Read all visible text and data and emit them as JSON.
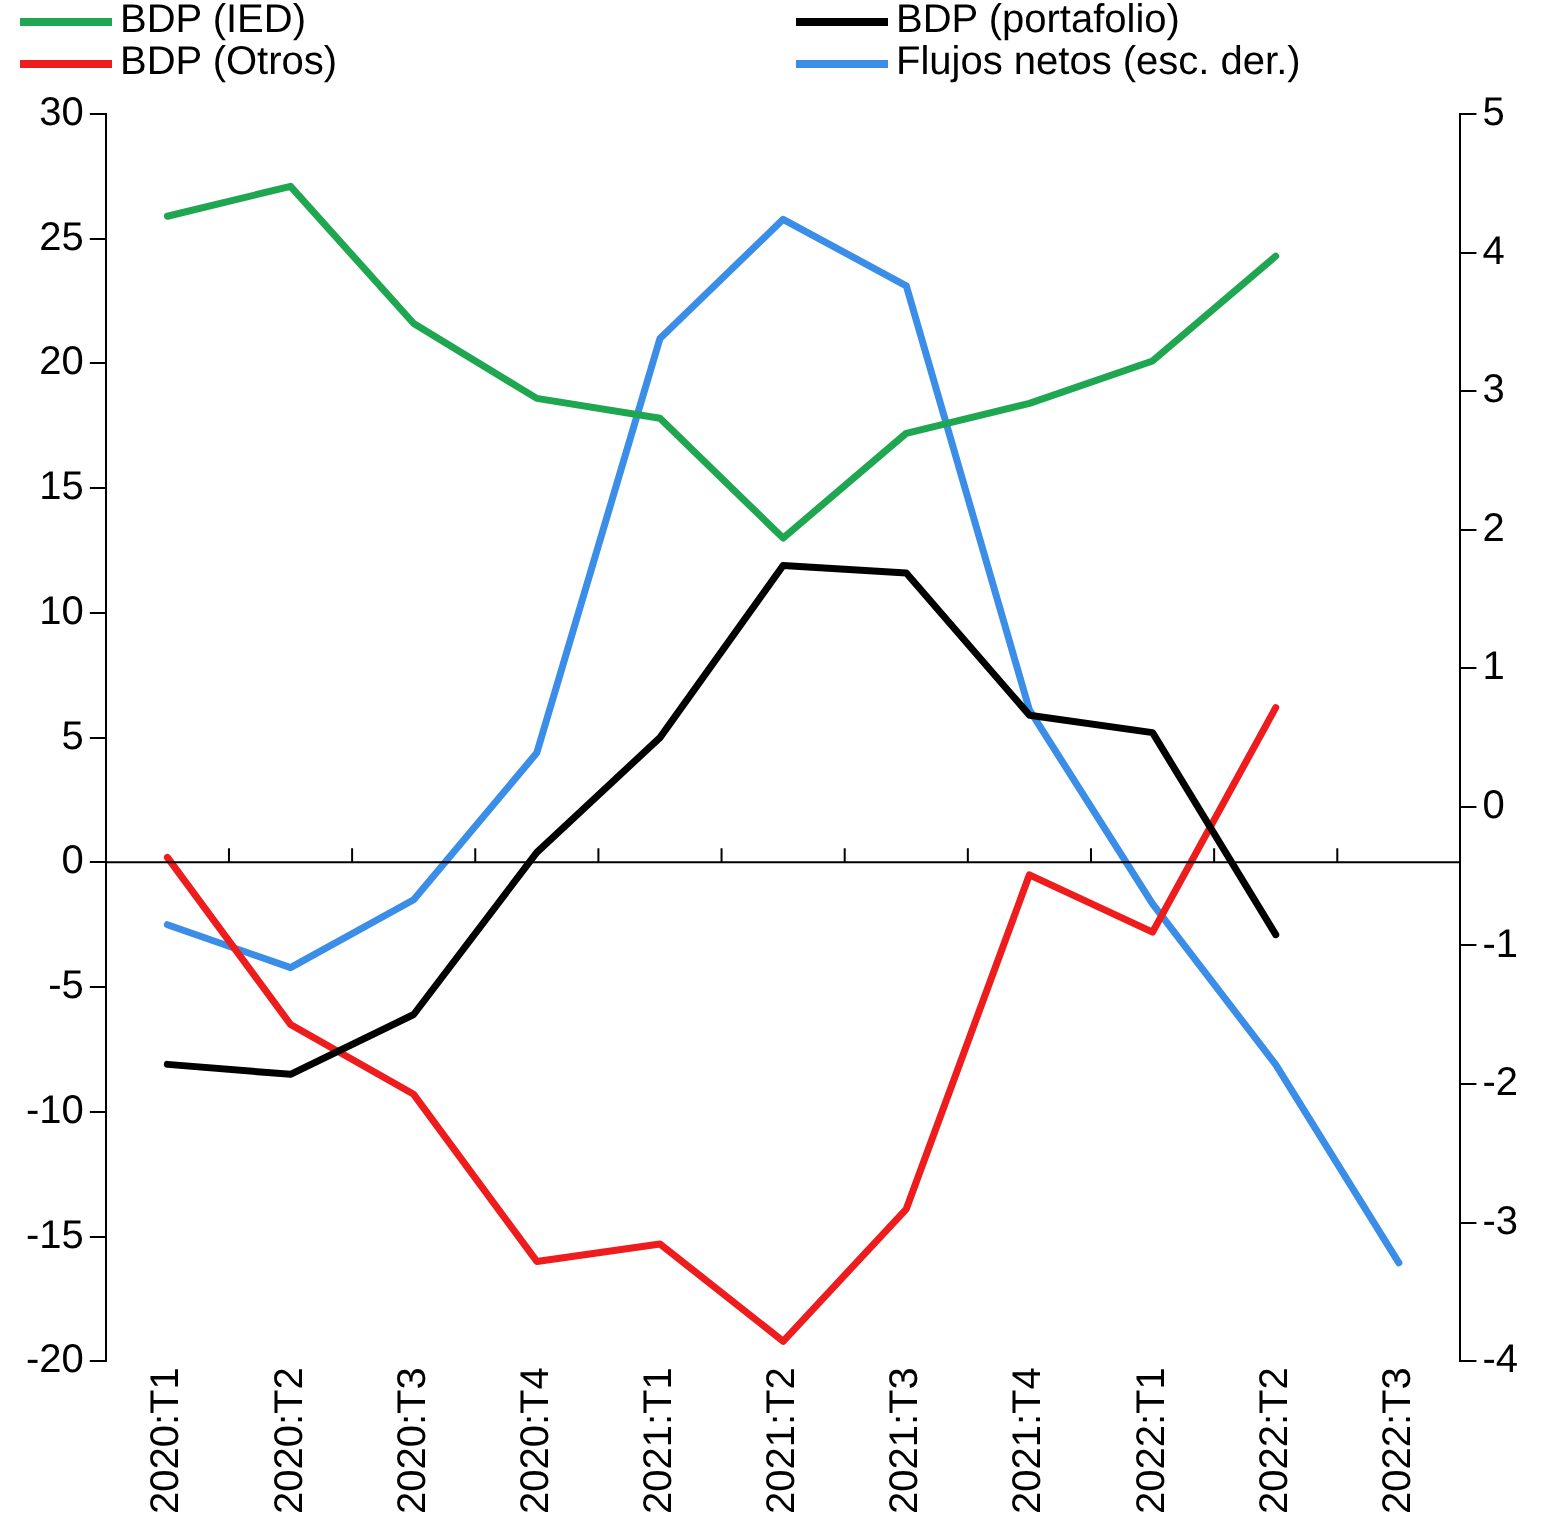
{
  "chart_data": {
    "type": "line",
    "categories": [
      "2020:T1",
      "2020:T2",
      "2020:T3",
      "2020:T4",
      "2021:T1",
      "2021:T2",
      "2021:T3",
      "2021:T4",
      "2022:T1",
      "2022:T2",
      "2022:T3"
    ],
    "series": [
      {
        "name": "BDP (IED)",
        "color": "#1ea650",
        "values": [
          25.9,
          27.1,
          21.6,
          18.6,
          17.8,
          13.0,
          17.2,
          18.4,
          20.1,
          24.3,
          null
        ]
      },
      {
        "name": "BDP (portafolio)",
        "color": "#000000",
        "values": [
          -8.1,
          -8.5,
          -6.1,
          0.4,
          5.0,
          11.9,
          11.6,
          5.9,
          5.2,
          -2.9,
          null
        ]
      },
      {
        "name": "BDP (Otros)",
        "color": "#ee1c1c",
        "values": [
          0.2,
          -6.5,
          -9.3,
          -16.0,
          -15.3,
          -19.2,
          -13.9,
          -0.5,
          -2.8,
          6.2,
          null
        ]
      },
      {
        "name": "Flujos netos (esc. der.)",
        "color": "#3b8ee8",
        "axis": "y2",
        "values": [
          -0.85,
          -1.16,
          -0.67,
          0.39,
          3.38,
          4.24,
          3.76,
          0.7,
          -0.7,
          -1.86,
          -3.29
        ]
      }
    ],
    "ylim": [
      -20,
      30
    ],
    "yticks": [
      -20,
      -15,
      -10,
      -5,
      0,
      5,
      10,
      15,
      20,
      25,
      30
    ],
    "y2lim": [
      -4,
      5
    ],
    "y2ticks": [
      -4,
      -3,
      -2,
      -1,
      0,
      1,
      2,
      3,
      4,
      5
    ],
    "ref_lines": [
      {
        "axis": "y",
        "value": 0
      }
    ],
    "grid": false,
    "legend": "top",
    "marker": "none",
    "line_style": "solid"
  }
}
